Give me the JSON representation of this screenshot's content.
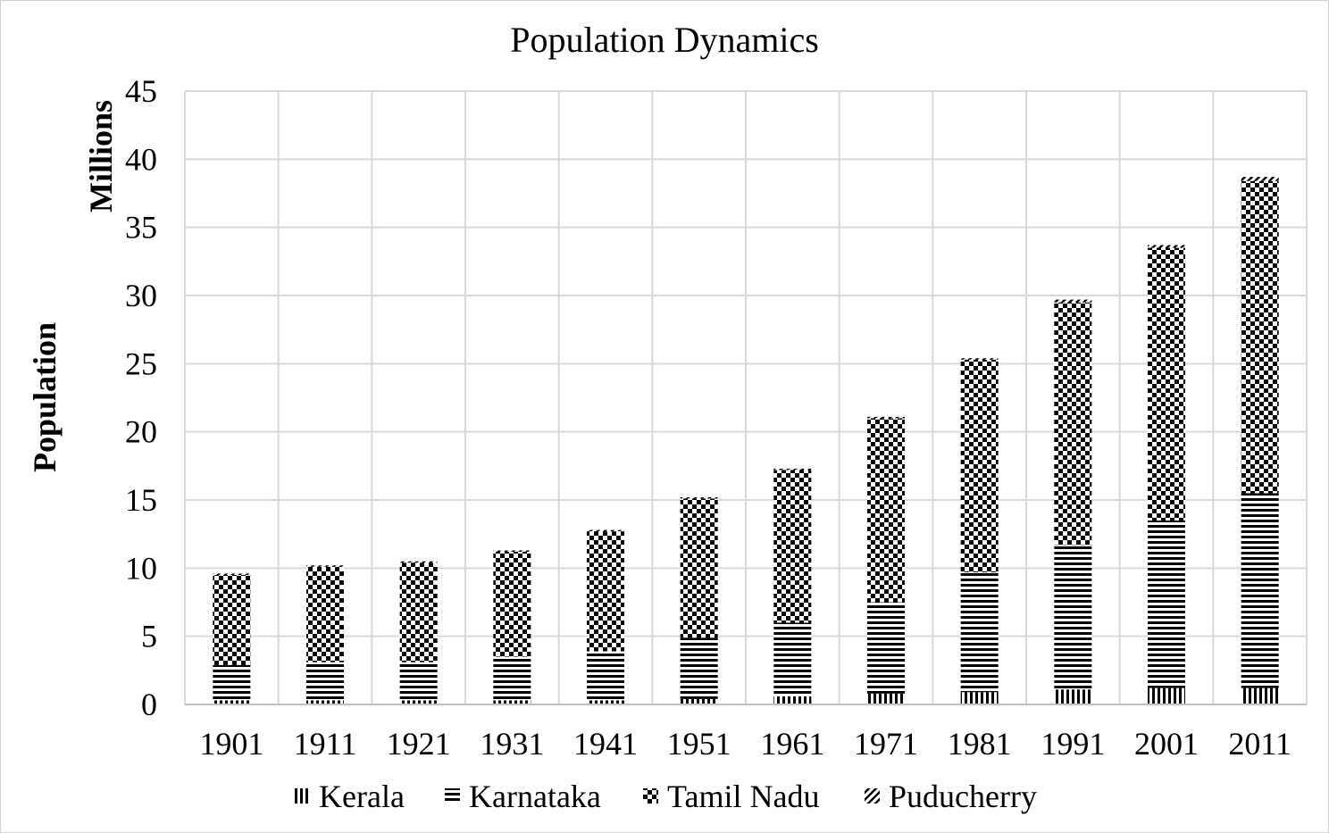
{
  "chart_data": {
    "type": "bar",
    "stacked": true,
    "title": "Population Dynamics",
    "xlabel": "",
    "ylabel": "Population",
    "yunit_label": "Millions",
    "ylim": [
      0,
      45
    ],
    "yticks": [
      0,
      5,
      10,
      15,
      20,
      25,
      30,
      35,
      40,
      45
    ],
    "grid": true,
    "legend_position": "bottom",
    "categories": [
      "1901",
      "1911",
      "1921",
      "1931",
      "1941",
      "1951",
      "1961",
      "1971",
      "1981",
      "1991",
      "2001",
      "2011"
    ],
    "series": [
      {
        "name": "Kerala",
        "pattern": "vertical-lines",
        "values": [
          0.3,
          0.3,
          0.3,
          0.3,
          0.3,
          0.4,
          0.6,
          0.8,
          0.9,
          1.1,
          1.2,
          1.2
        ]
      },
      {
        "name": "Karnataka",
        "pattern": "horizontal-lines",
        "values": [
          2.6,
          2.8,
          2.8,
          3.2,
          3.6,
          4.5,
          5.4,
          6.7,
          8.8,
          10.6,
          12.3,
          14.3
        ]
      },
      {
        "name": "Tamil Nadu",
        "pattern": "checkerboard",
        "values": [
          6.6,
          7.0,
          7.3,
          7.7,
          8.8,
          10.2,
          11.2,
          13.5,
          15.6,
          17.8,
          20.0,
          22.9
        ]
      },
      {
        "name": "Puducherry",
        "pattern": "diagonal-lines",
        "values": [
          0.1,
          0.1,
          0.1,
          0.1,
          0.1,
          0.1,
          0.1,
          0.1,
          0.1,
          0.2,
          0.2,
          0.3
        ]
      }
    ]
  },
  "colors": {
    "ink": "#000000",
    "grid": "#d9d9d9",
    "background": "#ffffff"
  }
}
